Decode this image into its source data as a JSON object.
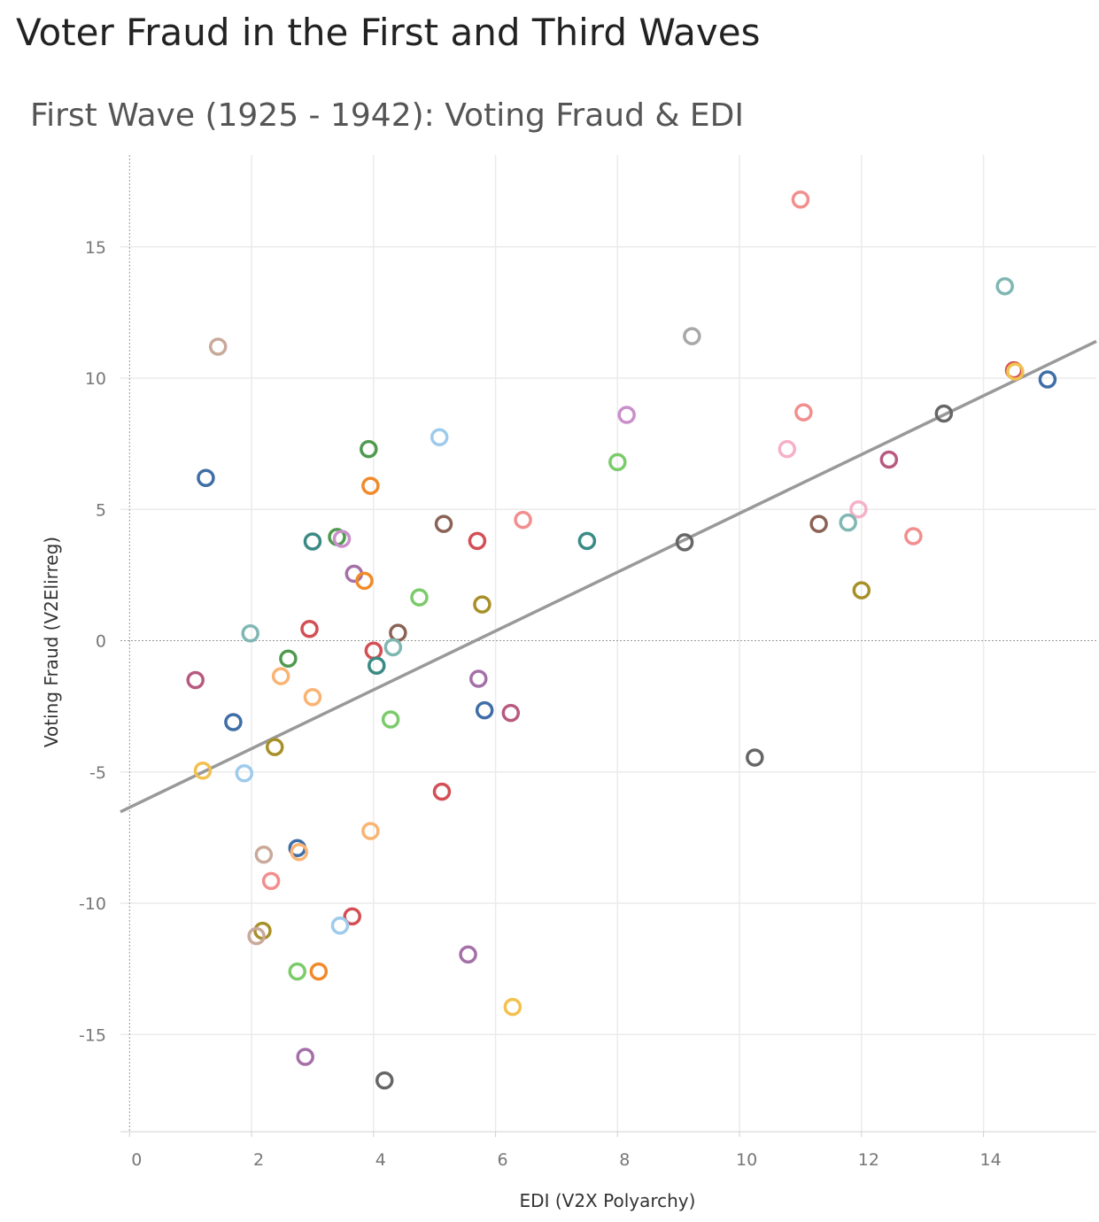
{
  "page": {
    "title": "Voter Fraud in the First and Third Waves"
  },
  "chart_data": {
    "type": "scatter",
    "title": "First Wave (1925 - 1942): Voting Fraud & EDI",
    "xlabel": "EDI (V2X Polyarchy)",
    "ylabel": "Voting Fraud (V2Elirreg)",
    "xlim": [
      -0.15,
      15.85
    ],
    "ylim": [
      -18.7,
      18.5
    ],
    "xticks": [
      0,
      2,
      4,
      6,
      8,
      10,
      12,
      14
    ],
    "xtick_labels": [
      "0",
      "2",
      "4",
      "6",
      "8",
      "10",
      "12",
      "14"
    ],
    "yticks": [
      15,
      10,
      5,
      0,
      -5,
      -10,
      -15
    ],
    "ytick_labels": [
      "15",
      "10",
      "5",
      "0",
      "-5",
      "-10",
      "-15"
    ],
    "grid": true,
    "trendline": {
      "slope": 1.12,
      "intercept": -6.35
    },
    "points": [
      {
        "x": 11.0,
        "y": 16.8,
        "color": "#f28e8e"
      },
      {
        "x": 14.35,
        "y": 13.5,
        "color": "#7fb7b3"
      },
      {
        "x": 1.45,
        "y": 11.2,
        "color": "#c9a99a"
      },
      {
        "x": 9.22,
        "y": 11.6,
        "color": "#a8a8a8"
      },
      {
        "x": 14.5,
        "y": 10.3,
        "color": "#d34f55"
      },
      {
        "x": 14.52,
        "y": 10.25,
        "color": "#f2c14e"
      },
      {
        "x": 15.05,
        "y": 9.95,
        "color": "#3f6ea6"
      },
      {
        "x": 8.15,
        "y": 8.6,
        "color": "#c98fc9"
      },
      {
        "x": 11.05,
        "y": 8.7,
        "color": "#f28e8e"
      },
      {
        "x": 13.35,
        "y": 8.65,
        "color": "#666666"
      },
      {
        "x": 5.08,
        "y": 7.75,
        "color": "#9ecbec"
      },
      {
        "x": 3.92,
        "y": 7.3,
        "color": "#4e9a4e"
      },
      {
        "x": 10.78,
        "y": 7.3,
        "color": "#f5b1c6"
      },
      {
        "x": 8.0,
        "y": 6.8,
        "color": "#7bcb6b"
      },
      {
        "x": 12.45,
        "y": 6.9,
        "color": "#b85a80"
      },
      {
        "x": 1.25,
        "y": 6.2,
        "color": "#3f6ea6"
      },
      {
        "x": 3.95,
        "y": 5.9,
        "color": "#f08a2a"
      },
      {
        "x": 11.95,
        "y": 5.0,
        "color": "#f5b1c6"
      },
      {
        "x": 6.45,
        "y": 4.6,
        "color": "#f28e8e"
      },
      {
        "x": 5.15,
        "y": 4.45,
        "color": "#8b6356"
      },
      {
        "x": 11.3,
        "y": 4.45,
        "color": "#8b6356"
      },
      {
        "x": 11.78,
        "y": 4.5,
        "color": "#7fb7b3"
      },
      {
        "x": 12.85,
        "y": 3.98,
        "color": "#f28e8e"
      },
      {
        "x": 3.4,
        "y": 3.95,
        "color": "#4e9a4e"
      },
      {
        "x": 3.48,
        "y": 3.88,
        "color": "#c98fc9"
      },
      {
        "x": 3.0,
        "y": 3.78,
        "color": "#3a8a85"
      },
      {
        "x": 5.7,
        "y": 3.8,
        "color": "#d34f55"
      },
      {
        "x": 7.5,
        "y": 3.8,
        "color": "#3a8a85"
      },
      {
        "x": 9.1,
        "y": 3.75,
        "color": "#666666"
      },
      {
        "x": 3.68,
        "y": 2.55,
        "color": "#a56fa8"
      },
      {
        "x": 3.85,
        "y": 2.28,
        "color": "#f08a2a"
      },
      {
        "x": 12.0,
        "y": 1.92,
        "color": "#a89028"
      },
      {
        "x": 4.75,
        "y": 1.65,
        "color": "#7bcb6b"
      },
      {
        "x": 5.78,
        "y": 1.38,
        "color": "#a89028"
      },
      {
        "x": 2.95,
        "y": 0.45,
        "color": "#d34f55"
      },
      {
        "x": 4.4,
        "y": 0.3,
        "color": "#8b6356"
      },
      {
        "x": 1.98,
        "y": 0.28,
        "color": "#7fb7b3"
      },
      {
        "x": 4.32,
        "y": -0.25,
        "color": "#7fb7b3"
      },
      {
        "x": 4.0,
        "y": -0.38,
        "color": "#d34f55"
      },
      {
        "x": 2.6,
        "y": -0.68,
        "color": "#4e9a4e"
      },
      {
        "x": 4.05,
        "y": -0.95,
        "color": "#3a8a85"
      },
      {
        "x": 2.48,
        "y": -1.35,
        "color": "#fbb373"
      },
      {
        "x": 1.08,
        "y": -1.5,
        "color": "#b85a80"
      },
      {
        "x": 5.72,
        "y": -1.45,
        "color": "#a56fa8"
      },
      {
        "x": 3.0,
        "y": -2.15,
        "color": "#fbb373"
      },
      {
        "x": 5.82,
        "y": -2.65,
        "color": "#3f6ea6"
      },
      {
        "x": 6.25,
        "y": -2.75,
        "color": "#b85a80"
      },
      {
        "x": 4.28,
        "y": -3.0,
        "color": "#7bcb6b"
      },
      {
        "x": 1.7,
        "y": -3.1,
        "color": "#3f6ea6"
      },
      {
        "x": 2.38,
        "y": -4.05,
        "color": "#a89028"
      },
      {
        "x": 10.25,
        "y": -4.45,
        "color": "#666666"
      },
      {
        "x": 1.2,
        "y": -4.95,
        "color": "#f2c14e"
      },
      {
        "x": 1.88,
        "y": -5.05,
        "color": "#9ecbec"
      },
      {
        "x": 5.12,
        "y": -5.75,
        "color": "#d34f55"
      },
      {
        "x": 3.95,
        "y": -7.25,
        "color": "#fbb373"
      },
      {
        "x": 2.75,
        "y": -7.9,
        "color": "#3f6ea6"
      },
      {
        "x": 2.78,
        "y": -8.05,
        "color": "#fbb373"
      },
      {
        "x": 2.2,
        "y": -8.15,
        "color": "#c9a99a"
      },
      {
        "x": 2.32,
        "y": -9.15,
        "color": "#f28e8e"
      },
      {
        "x": 3.65,
        "y": -10.5,
        "color": "#d34f55"
      },
      {
        "x": 3.45,
        "y": -10.85,
        "color": "#9ecbec"
      },
      {
        "x": 2.18,
        "y": -11.05,
        "color": "#a89028"
      },
      {
        "x": 2.08,
        "y": -11.25,
        "color": "#c9a99a"
      },
      {
        "x": 5.55,
        "y": -11.95,
        "color": "#a56fa8"
      },
      {
        "x": 2.75,
        "y": -12.6,
        "color": "#7bcb6b"
      },
      {
        "x": 3.1,
        "y": -12.6,
        "color": "#f08a2a"
      },
      {
        "x": 6.28,
        "y": -13.95,
        "color": "#f2c14e"
      },
      {
        "x": 2.88,
        "y": -15.85,
        "color": "#a56fa8"
      },
      {
        "x": 4.18,
        "y": -16.75,
        "color": "#666666"
      }
    ]
  }
}
